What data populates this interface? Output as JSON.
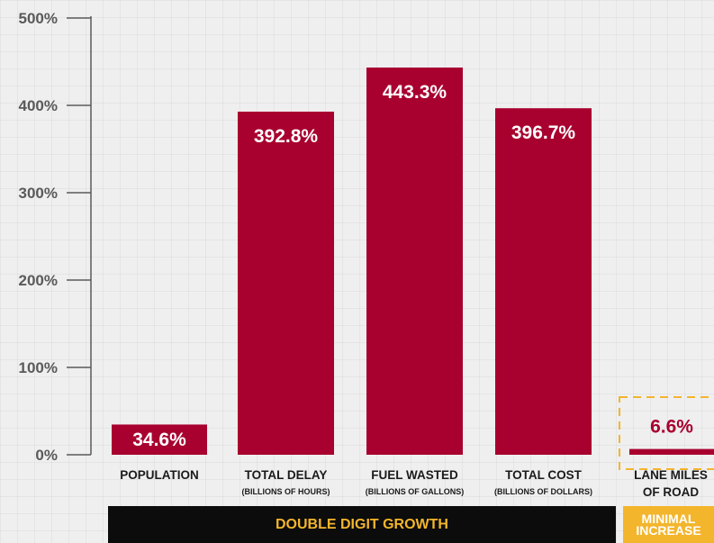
{
  "chart_data": {
    "type": "bar",
    "title": "",
    "xlabel": "",
    "ylabel": "",
    "ylim": [
      0,
      500
    ],
    "yticks": [
      "0%",
      "100%",
      "200%",
      "300%",
      "400%",
      "500%"
    ],
    "ytick_values": [
      0,
      100,
      200,
      300,
      400,
      500
    ],
    "grid": true,
    "categories": [
      {
        "name": "POPULATION",
        "sub": ""
      },
      {
        "name": "TOTAL DELAY",
        "sub": "(BILLIONS OF HOURS)"
      },
      {
        "name": "FUEL WASTED",
        "sub": "(BILLIONS OF GALLONS)"
      },
      {
        "name": "TOTAL COST",
        "sub": "(BILLIONS OF DOLLARS)"
      },
      {
        "name": "LANE MILES",
        "sub": "OF ROAD"
      }
    ],
    "values": [
      34.6,
      392.8,
      443.3,
      396.7,
      6.6
    ],
    "data_labels": [
      "34.6%",
      "392.8%",
      "443.3%",
      "396.7%",
      "6.6%"
    ],
    "groups": [
      {
        "label": "DOUBLE DIGIT GROWTH",
        "categories": [
          0,
          1,
          2,
          3
        ]
      },
      {
        "label_lines": [
          "MINIMAL",
          "INCREASE"
        ],
        "categories": [
          4
        ]
      }
    ],
    "colors": {
      "bar": "#a8002f",
      "band_dark": "#0c0c0c",
      "band_accent": "#f3b52c",
      "axis": "#5a5a5a"
    }
  }
}
